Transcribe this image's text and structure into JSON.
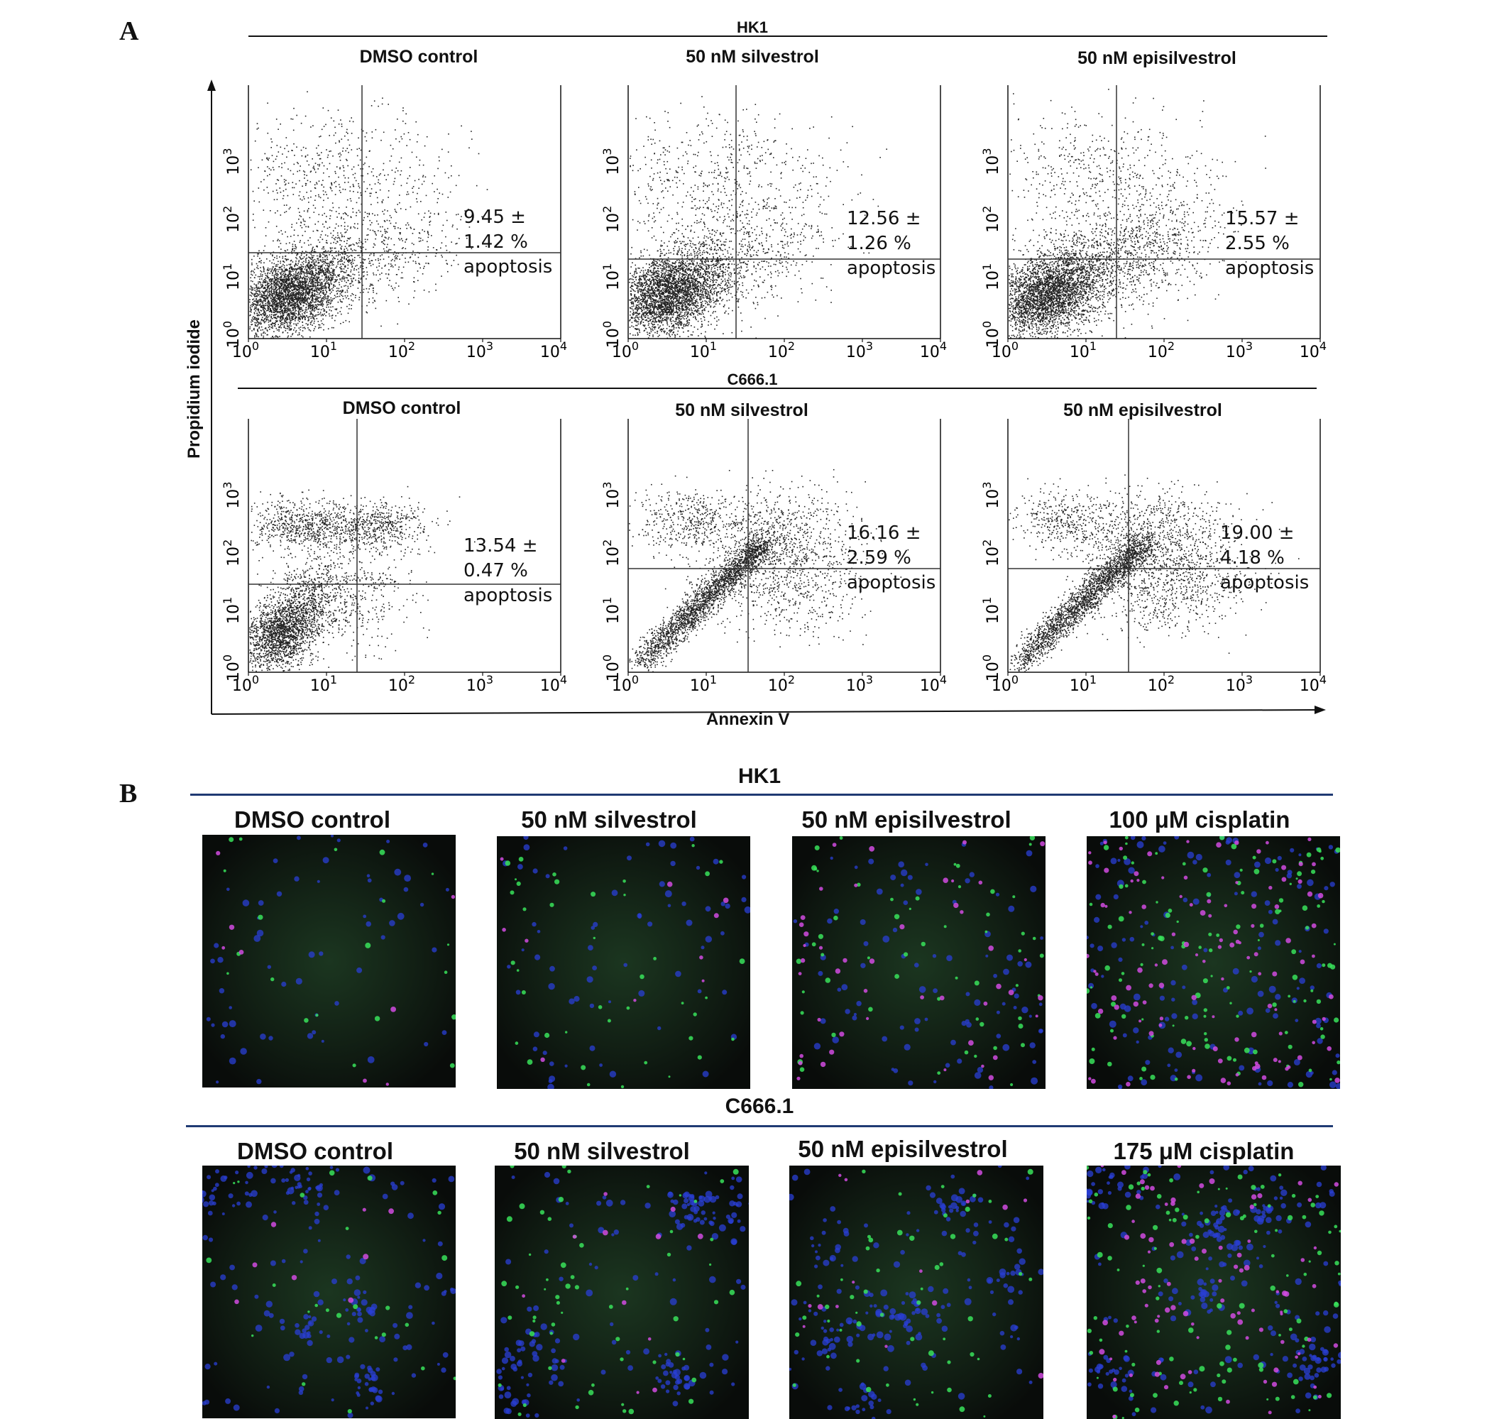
{
  "panel_a": {
    "letter": "A",
    "y_axis_label": "Propidium iodide",
    "x_axis_label": "Annexin V",
    "tick_labels": [
      "10^0",
      "10^1",
      "10^2",
      "10^3",
      "10^4"
    ],
    "rows": [
      {
        "cell_line": "HK1",
        "plots": [
          {
            "title": "DMSO control",
            "apoptosis_pct": "9.45 ±",
            "sd": "1.42 %",
            "label": "apoptosis"
          },
          {
            "title": "50 nM silvestrol",
            "apoptosis_pct": "12.56 ±",
            "sd": "1.26 %",
            "label": "apoptosis"
          },
          {
            "title": "50 nM episilvestrol",
            "apoptosis_pct": "15.57 ±",
            "sd": "2.55 %",
            "label": "apoptosis"
          }
        ]
      },
      {
        "cell_line": "C666.1",
        "plots": [
          {
            "title": "DMSO control",
            "apoptosis_pct": "13.54 ±",
            "sd": "0.47 %",
            "label": "apoptosis"
          },
          {
            "title": "50 nM silvestrol",
            "apoptosis_pct": "16.16 ±",
            "sd": "2.59 %",
            "label": "apoptosis"
          },
          {
            "title": "50 nM episilvestrol",
            "apoptosis_pct": "19.00 ±",
            "sd": "4.18 %",
            "label": "apoptosis"
          }
        ]
      }
    ]
  },
  "panel_b": {
    "letter": "B",
    "rows": [
      {
        "cell_line": "HK1",
        "images": [
          "DMSO control",
          "50 nM silvestrol",
          "50 nM episilvestrol",
          "100 μM cisplatin"
        ]
      },
      {
        "cell_line": "C666.1",
        "images": [
          "DMSO control",
          "50 nM silvestrol",
          "50 nM episilvestrol",
          "175 μM cisplatin"
        ]
      }
    ]
  },
  "colors": {
    "text": "#111111",
    "panel_b_rule": "#1f3a73",
    "micrograph_bg": "#0b0f0c",
    "stain_blue": "#2a3fd6",
    "stain_green": "#38e25a",
    "stain_magenta": "#d14be0"
  }
}
